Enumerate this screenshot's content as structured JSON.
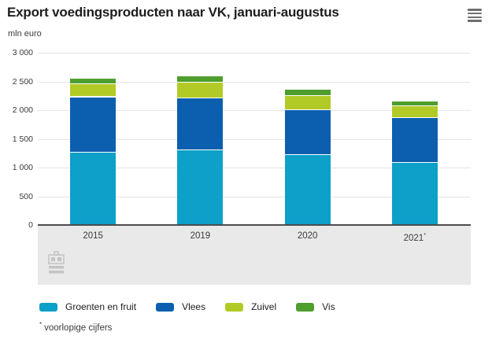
{
  "header": {
    "title": "Export voedingsproducten naar VK, januari-augustus",
    "menu_icon": "hamburger-menu-icon"
  },
  "chart_data": {
    "type": "bar",
    "stacked": true,
    "title": "Export voedingsproducten naar VK, januari-augustus",
    "unit_label": "mln euro",
    "categories": [
      "2015",
      "2019",
      "2020",
      "2021*"
    ],
    "series": [
      {
        "name": "Groenten en fruit",
        "color": "#0da0c8",
        "values": [
          1270,
          1310,
          1230,
          1100
        ]
      },
      {
        "name": "Vlees",
        "color": "#0c5fae",
        "values": [
          970,
          910,
          780,
          780
        ]
      },
      {
        "name": "Zuivel",
        "color": "#b2ca26",
        "values": [
          220,
          270,
          250,
          200
        ]
      },
      {
        "name": "Vis",
        "color": "#4f9e2e",
        "values": [
          100,
          110,
          110,
          80
        ]
      }
    ],
    "totals": [
      2560,
      2600,
      2370,
      2160
    ],
    "ylim": [
      0,
      3000
    ],
    "ytick_step": 500,
    "ytick_labels": [
      "0",
      "500",
      "1 000",
      "1 500",
      "2 000",
      "2 500",
      "3 000"
    ],
    "grid": true,
    "legend_position": "bottom"
  },
  "footnote": {
    "marker": "*",
    "text": "voorlopige cijfers"
  },
  "colors": {
    "axis_line": "#4c4c4e",
    "gridline": "#e4e4e4",
    "xaxis_band": "#e9e9e9",
    "text": "#3a3a3a",
    "title_text": "#1d1d1d",
    "icon_grey": "#c4c4c4"
  }
}
